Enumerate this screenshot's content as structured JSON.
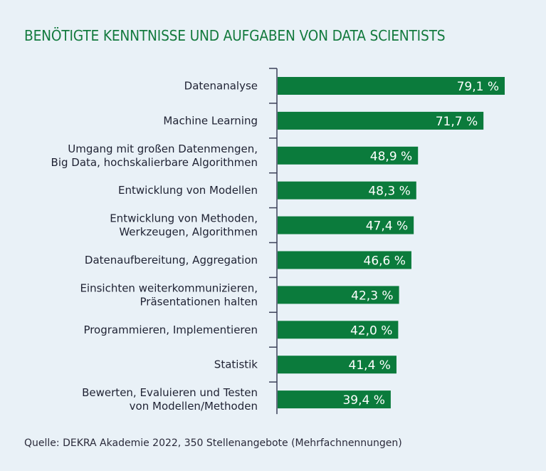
{
  "chart_data": {
    "type": "bar",
    "orientation": "horizontal",
    "title": "BENÖTIGTE KENNTNISSE UND AUFGABEN VON DATA SCIENTISTS",
    "categories": [
      [
        "Datenanalyse"
      ],
      [
        "Machine Learning"
      ],
      [
        "Umgang mit großen Datenmengen,",
        "Big Data, hochskalierbare Algorithmen"
      ],
      [
        "Entwicklung von Modellen"
      ],
      [
        "Entwicklung von Methoden,",
        "Werkzeugen, Algorithmen"
      ],
      [
        "Datenaufbereitung, Aggregation"
      ],
      [
        "Einsichten weiterkommunizieren,",
        "Präsentationen halten"
      ],
      [
        "Programmieren, Implementieren"
      ],
      [
        "Statistik"
      ],
      [
        "Bewerten, Evaluieren und Testen",
        "von Modellen/Methoden"
      ]
    ],
    "values": [
      79.1,
      71.7,
      48.9,
      48.3,
      47.4,
      46.6,
      42.3,
      42.0,
      41.4,
      39.4
    ],
    "value_labels": [
      "79,1 %",
      "71,7 %",
      "48,9 %",
      "48,3 %",
      "47,4 %",
      "46,6 %",
      "42,3 %",
      "42,0 %",
      "41,4 %",
      "39,4 %"
    ],
    "unit": "%",
    "xlim": [
      0,
      100
    ],
    "grid": false,
    "colors": {
      "bar": "#0b7b3c",
      "title": "#137a3e",
      "axis": "#3b4058",
      "background": "#e9f1f7"
    },
    "source": "Quelle: DEKRA Akademie 2022, 350 Stellenangebote (Mehrfachnennungen)"
  }
}
